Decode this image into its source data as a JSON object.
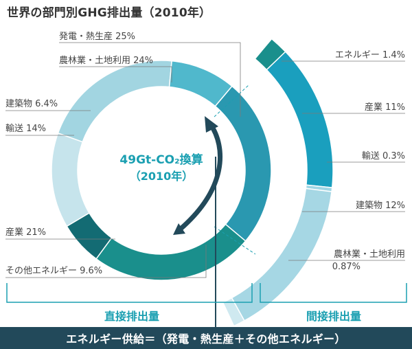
{
  "title": "世界の部門別GHG排出量（2010年）",
  "center_line1": "49Gt-CO₂換算",
  "center_line2": "（2010年）",
  "direct_label": "直接排出量",
  "indirect_label": "間接排出量",
  "footer": "エネルギー供給＝（発電・熱生産＋その他エネルギー）",
  "chart_data": [
    {
      "type": "donut",
      "title": "世界の部門別GHG排出量（2010年）",
      "unit": "%",
      "segments": [
        {
          "name": "発電・熱生産",
          "value": 25,
          "label": "発電・熱生産 25%",
          "color": "#2a98b0"
        },
        {
          "name": "農林業・土地利用",
          "value": 24,
          "label": "農林業・土地利用 24%",
          "color": "#1a8f8c"
        },
        {
          "name": "建築物",
          "value": 6.4,
          "label": "建築物 6.4%",
          "color": "#136b73"
        },
        {
          "name": "輸送",
          "value": 14,
          "label": "輸送 14%",
          "color": "#c6e4ec"
        },
        {
          "name": "産業",
          "value": 21,
          "label": "産業 21%",
          "color": "#a2d5e1"
        },
        {
          "name": "その他エネルギー",
          "value": 9.6,
          "label": "その他エネルギー 9.6%",
          "color": "#50b8cc"
        }
      ]
    },
    {
      "type": "bar",
      "orientation": "arc",
      "unit": "%",
      "segments": [
        {
          "name": "エネルギー",
          "value": 1.4,
          "label": "エネルギー 1.4%",
          "color": "#1a8f8c"
        },
        {
          "name": "産業",
          "value": 11,
          "label": "産業 11%",
          "color": "#1a9fbe"
        },
        {
          "name": "輸送",
          "value": 0.3,
          "label": "輸送 0.3%",
          "color": "#9fd6e4"
        },
        {
          "name": "建築物",
          "value": 12,
          "label": "建築物 12%",
          "color": "#a6d7e4"
        },
        {
          "name": "農林業・土地利用",
          "value": 0.87,
          "label_line1": "農林業・土地利用",
          "label_line2": "0.87%",
          "color": "#cfe9f0"
        }
      ]
    }
  ]
}
